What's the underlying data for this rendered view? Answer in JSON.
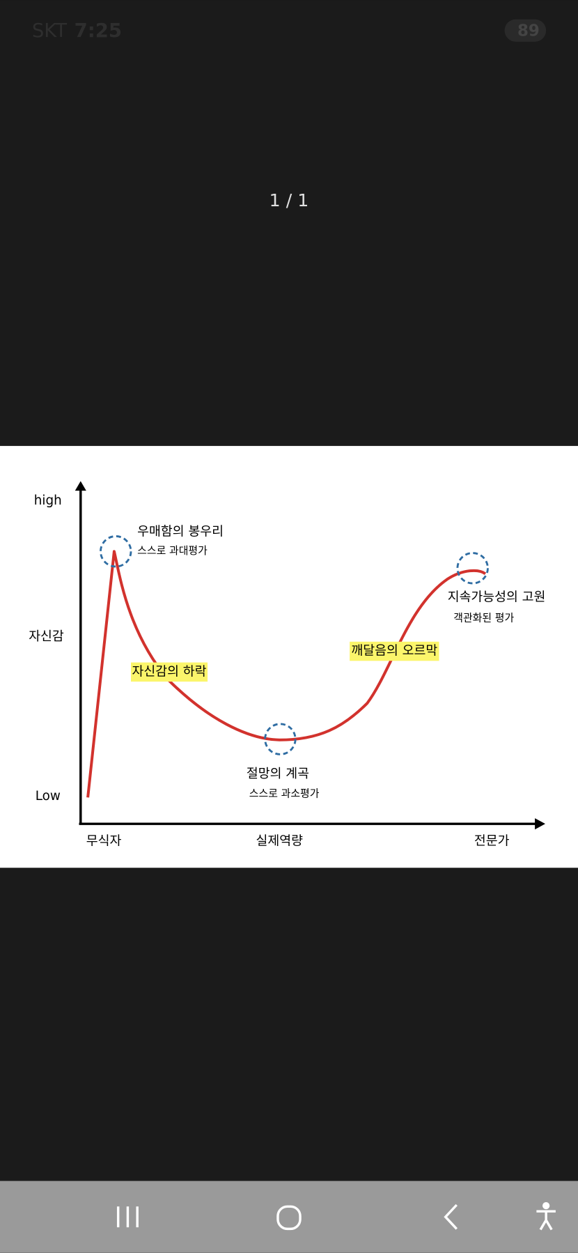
{
  "status_bar": {
    "carrier": "SKT",
    "time": "7:25",
    "battery": "89"
  },
  "viewer": {
    "counter": "1 / 1"
  },
  "diagram": {
    "y_axis": {
      "high": "high",
      "middle": "자신감",
      "low": "Low"
    },
    "x_axis": {
      "left": "무식자",
      "middle": "실제역량",
      "right": "전문가"
    },
    "annotations": [
      {
        "title": "우매함의 봉우리",
        "subtitle": "스스로 과대평가"
      },
      {
        "title": "자신감의 하락"
      },
      {
        "title": "절망의 계곡",
        "subtitle": "스스로 과소평가"
      },
      {
        "title": "깨달음의 오르막"
      },
      {
        "title": "지속가능성의 고원",
        "subtitle": "객관화된 평가"
      }
    ]
  }
}
